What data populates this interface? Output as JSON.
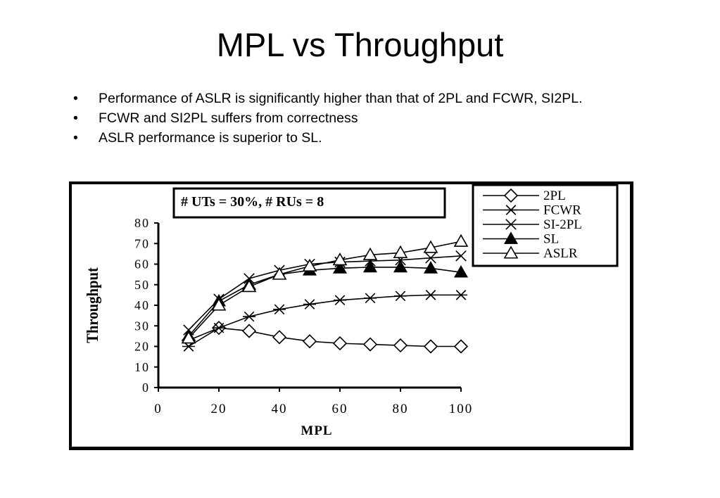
{
  "slide": {
    "title": "MPL vs Throughput",
    "bullets": [
      {
        "marker": "•",
        "text": "Performance of ASLR is significantly higher than that of 2PL and FCWR, SI2PL."
      },
      {
        "marker": "•",
        "text": "FCWR  and SI2PL suffers from correctness"
      },
      {
        "marker": "•",
        "text": " ASLR performance is superior to SL."
      }
    ]
  },
  "chart_data": {
    "type": "line",
    "title": "# UTs =  30%,  # RUs = 8",
    "xlabel": "MPL",
    "ylabel": "Throughput",
    "xlim": [
      0,
      100
    ],
    "ylim": [
      0,
      80
    ],
    "xticks": [
      0,
      20,
      40,
      60,
      80,
      100
    ],
    "yticks": [
      0,
      10,
      20,
      30,
      40,
      50,
      60,
      70,
      80
    ],
    "grid": false,
    "legend_position": "top-right",
    "x": [
      10,
      20,
      30,
      40,
      50,
      60,
      70,
      80,
      90,
      100
    ],
    "series": [
      {
        "name": "2PL",
        "marker": "diamond-open",
        "values": [
          23,
          29,
          27.5,
          24.5,
          22.5,
          21.5,
          21,
          20.5,
          20,
          20
        ]
      },
      {
        "name": "FCWR",
        "marker": "asterisk",
        "values": [
          20,
          29,
          34.5,
          38,
          40.5,
          42.5,
          43.5,
          44.5,
          45,
          45
        ]
      },
      {
        "name": "SI-2PL",
        "marker": "x",
        "values": [
          28,
          43,
          53,
          57,
          60,
          61,
          61.5,
          62,
          63,
          64
        ]
      },
      {
        "name": "SL",
        "marker": "triangle-filled",
        "values": [
          25,
          42,
          50,
          55,
          57,
          58,
          58.5,
          58.5,
          58,
          56
        ]
      },
      {
        "name": "ASLR",
        "marker": "triangle-open",
        "values": [
          24,
          40,
          49,
          55,
          59,
          62,
          64.5,
          65.5,
          68,
          71
        ]
      }
    ]
  }
}
